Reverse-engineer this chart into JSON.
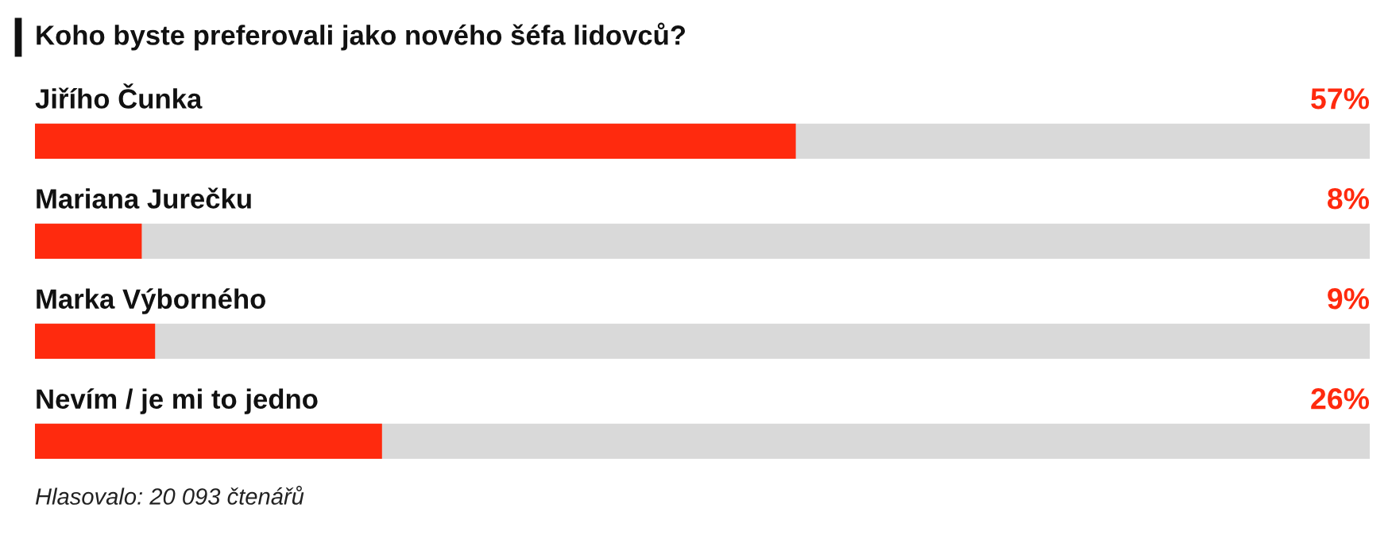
{
  "chart_data": {
    "type": "bar",
    "orientation": "horizontal",
    "title": "Koho byste preferovali jako nového šéfa lidovců?",
    "categories": [
      "Jiřího Čunka",
      "Mariana Jurečku",
      "Marka Výborného",
      "Nevím / je mi to jedno"
    ],
    "values": [
      57,
      8,
      9,
      26
    ],
    "value_labels": [
      "57%",
      "8%",
      "9%",
      "26%"
    ],
    "color": "#ff2a0e",
    "xlim": [
      0,
      100
    ],
    "annotations": [
      "Hlasovalo: 20 093 čtenářů"
    ]
  }
}
